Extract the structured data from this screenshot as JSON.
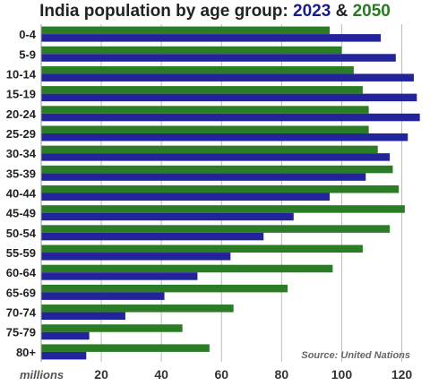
{
  "title": {
    "main": "India population by age group:",
    "year1": "2023",
    "connector": "&",
    "year2": "2050"
  },
  "source": "Source: United Nations",
  "unit_label": "millions",
  "colors": {
    "y2023": "#23239b",
    "y2050": "#2a7d24",
    "grid": "#bbbbbb",
    "text": "#222222"
  },
  "chart_data": {
    "type": "bar",
    "orientation": "horizontal",
    "categories": [
      "0-4",
      "5-9",
      "10-14",
      "15-19",
      "20-24",
      "25-29",
      "30-34",
      "35-39",
      "40-44",
      "45-49",
      "50-54",
      "55-59",
      "60-64",
      "65-69",
      "70-74",
      "75-79",
      "80+"
    ],
    "series": [
      {
        "name": "2050",
        "color": "#2a7d24",
        "values": [
          96,
          100,
          104,
          107,
          109,
          109,
          112,
          117,
          119,
          121,
          116,
          107,
          97,
          82,
          64,
          47,
          56
        ]
      },
      {
        "name": "2023",
        "color": "#23239b",
        "values": [
          113,
          118,
          124,
          125,
          126,
          122,
          116,
          108,
          96,
          84,
          74,
          63,
          52,
          41,
          28,
          16,
          15
        ]
      }
    ],
    "xticks": [
      20,
      40,
      60,
      80,
      100,
      120
    ],
    "xlim": [
      0,
      127
    ],
    "grid": true,
    "legend": "in title"
  }
}
